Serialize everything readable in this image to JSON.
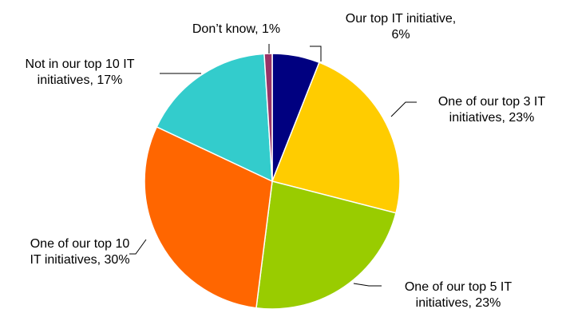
{
  "chart_data": {
    "type": "pie",
    "title": "",
    "start_angle_deg": 0,
    "direction": "clockwise",
    "slices": [
      {
        "label_lines": [
          "Our top IT initiative,",
          "6%"
        ],
        "category": "Our top IT initiative",
        "value": 6,
        "color": "#000080"
      },
      {
        "label_lines": [
          "One of our top 3 IT",
          "initiatives, 23%"
        ],
        "category": "One of our top 3 IT initiatives",
        "value": 23,
        "color": "#FFCC00"
      },
      {
        "label_lines": [
          "One of our top 5 IT",
          "initiatives, 23%"
        ],
        "category": "One of our top 5 IT initiatives",
        "value": 23,
        "color": "#99CC00"
      },
      {
        "label_lines": [
          "One of our top 10",
          "IT initiatives, 30%"
        ],
        "category": "One of our top 10 IT initiatives",
        "value": 30,
        "color": "#FF6600"
      },
      {
        "label_lines": [
          "Not in our top 10 IT",
          "initiatives, 17%"
        ],
        "category": "Not in our top 10 IT initiatives",
        "value": 17,
        "color": "#33CCCC"
      },
      {
        "label_lines": [
          "Don’t know, 1%"
        ],
        "category": "Don’t know",
        "value": 1,
        "color": "#993366"
      }
    ],
    "legend": "none",
    "data_labels": "outside with leader lines"
  }
}
